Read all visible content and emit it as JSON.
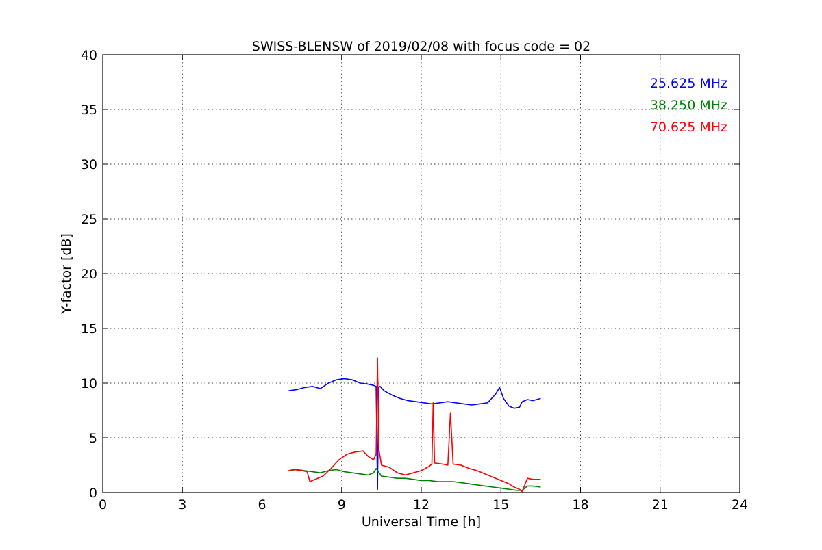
{
  "chart_data": {
    "type": "line",
    "title": "SWISS-BLENSW of 2019/02/08 with focus code = 02",
    "xlabel": "Universal Time [h]",
    "ylabel": "Y-factor [dB]",
    "xlim": [
      0,
      24
    ],
    "ylim": [
      0,
      40
    ],
    "xticks": [
      "0",
      "3",
      "6",
      "9",
      "12",
      "15",
      "18",
      "21",
      "24"
    ],
    "yticks": [
      "0",
      "5",
      "10",
      "15",
      "20",
      "25",
      "30",
      "35",
      "40"
    ],
    "grid": true,
    "legend_position": "top-right",
    "series": [
      {
        "name": "25.625 MHz",
        "color": "#0000ff",
        "x": [
          7.0,
          7.3,
          7.6,
          7.9,
          8.2,
          8.5,
          8.8,
          9.1,
          9.4,
          9.7,
          10.0,
          10.2,
          10.3,
          10.35,
          10.4,
          10.45,
          10.6,
          10.9,
          11.2,
          11.5,
          11.8,
          12.1,
          12.4,
          12.7,
          13.0,
          13.3,
          13.6,
          13.9,
          14.2,
          14.5,
          14.8,
          14.95,
          15.1,
          15.3,
          15.5,
          15.7,
          15.8,
          16.0,
          16.2,
          16.5
        ],
        "y": [
          9.3,
          9.4,
          9.6,
          9.7,
          9.5,
          10.0,
          10.3,
          10.4,
          10.3,
          10.0,
          9.9,
          9.8,
          9.7,
          0.3,
          9.6,
          9.7,
          9.3,
          8.9,
          8.6,
          8.4,
          8.3,
          8.2,
          8.1,
          8.2,
          8.3,
          8.2,
          8.1,
          8.0,
          8.1,
          8.2,
          9.0,
          9.6,
          8.6,
          7.9,
          7.7,
          7.8,
          8.3,
          8.5,
          8.4,
          8.6
        ]
      },
      {
        "name": "38.250 MHz",
        "color": "#008000",
        "x": [
          7.0,
          7.3,
          7.6,
          7.9,
          8.2,
          8.5,
          8.8,
          9.1,
          9.4,
          9.7,
          10.0,
          10.2,
          10.3,
          10.5,
          10.8,
          11.1,
          11.4,
          11.7,
          12.0,
          12.3,
          12.6,
          12.9,
          13.2,
          13.5,
          13.8,
          14.1,
          14.4,
          14.7,
          15.0,
          15.3,
          15.6,
          15.8,
          16.0,
          16.2,
          16.5
        ],
        "y": [
          2.0,
          2.1,
          2.0,
          1.9,
          1.8,
          2.0,
          2.1,
          1.9,
          1.8,
          1.7,
          1.6,
          1.8,
          2.2,
          1.5,
          1.4,
          1.3,
          1.3,
          1.2,
          1.1,
          1.1,
          1.0,
          1.0,
          1.0,
          0.9,
          0.8,
          0.7,
          0.6,
          0.5,
          0.4,
          0.3,
          0.2,
          0.2,
          0.6,
          0.6,
          0.5
        ]
      },
      {
        "name": "70.625 MHz",
        "color": "#ff0000",
        "x": [
          7.0,
          7.2,
          7.5,
          7.7,
          7.8,
          8.0,
          8.3,
          8.6,
          8.9,
          9.2,
          9.5,
          9.8,
          10.0,
          10.2,
          10.3,
          10.35,
          10.4,
          10.5,
          10.8,
          11.1,
          11.4,
          11.7,
          12.0,
          12.3,
          12.4,
          12.45,
          12.5,
          12.8,
          13.0,
          13.1,
          13.2,
          13.5,
          13.8,
          14.1,
          14.4,
          14.7,
          15.0,
          15.3,
          15.5,
          15.7,
          15.8,
          16.0,
          16.2,
          16.5
        ],
        "y": [
          2.0,
          2.1,
          2.0,
          1.9,
          1.0,
          1.2,
          1.5,
          2.2,
          3.0,
          3.5,
          3.7,
          3.8,
          3.3,
          3.0,
          3.5,
          12.3,
          4.0,
          2.5,
          2.3,
          1.8,
          1.6,
          1.8,
          2.0,
          2.4,
          2.6,
          8.2,
          2.7,
          2.6,
          2.5,
          7.3,
          2.6,
          2.5,
          2.2,
          2.0,
          1.7,
          1.4,
          1.1,
          0.8,
          0.5,
          0.3,
          0.1,
          1.3,
          1.2,
          1.2
        ]
      }
    ]
  }
}
